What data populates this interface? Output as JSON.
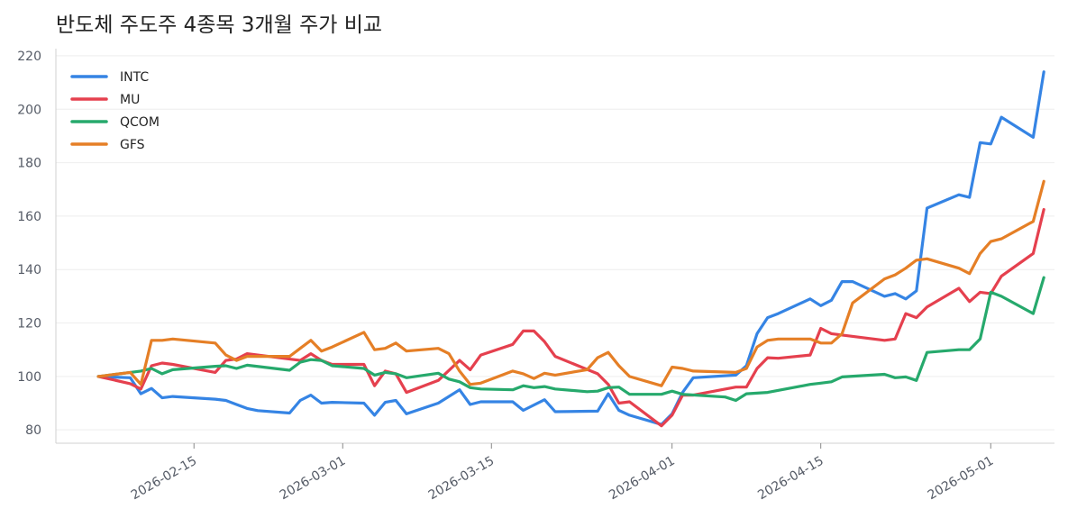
{
  "chart_data": {
    "type": "line",
    "title": "반도체 주도주 4종목 3개월 주가 비교",
    "xlabel": "",
    "ylabel": "",
    "ylim": [
      75,
      222
    ],
    "xlim": [
      "2026-02-02",
      "2026-05-07"
    ],
    "grid": true,
    "legend_position": "top-left",
    "yticks": [
      80,
      100,
      120,
      140,
      160,
      180,
      200,
      220
    ],
    "xticks": [
      "2026-02-15",
      "2026-03-01",
      "2026-03-15",
      "2026-04-01",
      "2026-04-15",
      "2026-05-01"
    ],
    "series": [
      {
        "name": "INTC",
        "color": "#3584e4",
        "points": [
          [
            "2026-02-06",
            100
          ],
          [
            "2026-02-09",
            99.5
          ],
          [
            "2026-02-10",
            93.5
          ],
          [
            "2026-02-11",
            95.5
          ],
          [
            "2026-02-12",
            92
          ],
          [
            "2026-02-13",
            92.5
          ],
          [
            "2026-02-17",
            91.5
          ],
          [
            "2026-02-18",
            91
          ],
          [
            "2026-02-19",
            89.5
          ],
          [
            "2026-02-20",
            88
          ],
          [
            "2026-02-21",
            87.2
          ],
          [
            "2026-02-24",
            86.3
          ],
          [
            "2026-02-25",
            91
          ],
          [
            "2026-02-26",
            93
          ],
          [
            "2026-02-27",
            90
          ],
          [
            "2026-02-28",
            90.3
          ],
          [
            "2026-03-03",
            90
          ],
          [
            "2026-03-04",
            85.5
          ],
          [
            "2026-03-05",
            90.3
          ],
          [
            "2026-03-06",
            91
          ],
          [
            "2026-03-07",
            86
          ],
          [
            "2026-03-10",
            90
          ],
          [
            "2026-03-12",
            95
          ],
          [
            "2026-03-13",
            89.5
          ],
          [
            "2026-03-14",
            90.5
          ],
          [
            "2026-03-17",
            90.5
          ],
          [
            "2026-03-18",
            87.3
          ],
          [
            "2026-03-20",
            91.3
          ],
          [
            "2026-03-21",
            86.8
          ],
          [
            "2026-03-25",
            87
          ],
          [
            "2026-03-26",
            93.5
          ],
          [
            "2026-03-27",
            87.3
          ],
          [
            "2026-03-28",
            85.5
          ],
          [
            "2026-03-31",
            82
          ],
          [
            "2026-04-01",
            86
          ],
          [
            "2026-04-02",
            94
          ],
          [
            "2026-04-03",
            99.5
          ],
          [
            "2026-04-07",
            100.5
          ],
          [
            "2026-04-08",
            104
          ],
          [
            "2026-04-09",
            116
          ],
          [
            "2026-04-10",
            122
          ],
          [
            "2026-04-11",
            123.5
          ],
          [
            "2026-04-14",
            129
          ],
          [
            "2026-04-15",
            126.5
          ],
          [
            "2026-04-16",
            128.5
          ],
          [
            "2026-04-17",
            135.5
          ],
          [
            "2026-04-18",
            135.5
          ],
          [
            "2026-04-21",
            130
          ],
          [
            "2026-04-22",
            131
          ],
          [
            "2026-04-23",
            129
          ],
          [
            "2026-04-24",
            132
          ],
          [
            "2026-04-25",
            163
          ],
          [
            "2026-04-28",
            168
          ],
          [
            "2026-04-29",
            167
          ],
          [
            "2026-04-30",
            187.5
          ],
          [
            "2026-05-01",
            187
          ],
          [
            "2026-05-02",
            197
          ],
          [
            "2026-05-05",
            189.5
          ],
          [
            "2026-05-06",
            214
          ]
        ]
      },
      {
        "name": "MU",
        "color": "#e5404e",
        "points": [
          [
            "2026-02-06",
            100
          ],
          [
            "2026-02-09",
            97.3
          ],
          [
            "2026-02-10",
            95.3
          ],
          [
            "2026-02-11",
            104
          ],
          [
            "2026-02-12",
            105
          ],
          [
            "2026-02-13",
            104.5
          ],
          [
            "2026-02-17",
            101.5
          ],
          [
            "2026-02-18",
            106
          ],
          [
            "2026-02-19",
            106.5
          ],
          [
            "2026-02-20",
            108.5
          ],
          [
            "2026-02-21",
            108
          ],
          [
            "2026-02-24",
            106.5
          ],
          [
            "2026-02-25",
            106
          ],
          [
            "2026-02-26",
            108.5
          ],
          [
            "2026-02-27",
            106
          ],
          [
            "2026-02-28",
            104.5
          ],
          [
            "2026-03-03",
            104.5
          ],
          [
            "2026-03-04",
            96.5
          ],
          [
            "2026-03-05",
            102
          ],
          [
            "2026-03-06",
            101
          ],
          [
            "2026-03-07",
            94
          ],
          [
            "2026-03-10",
            98.5
          ],
          [
            "2026-03-12",
            106
          ],
          [
            "2026-03-13",
            102.5
          ],
          [
            "2026-03-14",
            108
          ],
          [
            "2026-03-17",
            112
          ],
          [
            "2026-03-18",
            117
          ],
          [
            "2026-03-19",
            117
          ],
          [
            "2026-03-20",
            113
          ],
          [
            "2026-03-21",
            107.5
          ],
          [
            "2026-03-25",
            101
          ],
          [
            "2026-03-26",
            97
          ],
          [
            "2026-03-27",
            90
          ],
          [
            "2026-03-28",
            90.5
          ],
          [
            "2026-03-31",
            81.5
          ],
          [
            "2026-04-01",
            85.5
          ],
          [
            "2026-04-02",
            93
          ],
          [
            "2026-04-03",
            93
          ],
          [
            "2026-04-07",
            96
          ],
          [
            "2026-04-08",
            96
          ],
          [
            "2026-04-09",
            103
          ],
          [
            "2026-04-10",
            107
          ],
          [
            "2026-04-11",
            106.8
          ],
          [
            "2026-04-14",
            108
          ],
          [
            "2026-04-15",
            118
          ],
          [
            "2026-04-16",
            116
          ],
          [
            "2026-04-17",
            115.5
          ],
          [
            "2026-04-21",
            113.5
          ],
          [
            "2026-04-22",
            114
          ],
          [
            "2026-04-23",
            123.5
          ],
          [
            "2026-04-24",
            122
          ],
          [
            "2026-04-25",
            126
          ],
          [
            "2026-04-28",
            133
          ],
          [
            "2026-04-29",
            128
          ],
          [
            "2026-04-30",
            131.5
          ],
          [
            "2026-05-01",
            131
          ],
          [
            "2026-05-02",
            137.5
          ],
          [
            "2026-05-05",
            146
          ],
          [
            "2026-05-06",
            162.5
          ]
        ]
      },
      {
        "name": "QCOM",
        "color": "#26a96c",
        "points": [
          [
            "2026-02-06",
            100
          ],
          [
            "2026-02-09",
            101.5
          ],
          [
            "2026-02-10",
            102
          ],
          [
            "2026-02-11",
            103
          ],
          [
            "2026-02-12",
            101
          ],
          [
            "2026-02-13",
            102.5
          ],
          [
            "2026-02-17",
            103.8
          ],
          [
            "2026-02-18",
            104
          ],
          [
            "2026-02-19",
            103
          ],
          [
            "2026-02-20",
            104.2
          ],
          [
            "2026-02-24",
            102.3
          ],
          [
            "2026-02-25",
            105.3
          ],
          [
            "2026-02-26",
            106.3
          ],
          [
            "2026-02-27",
            106
          ],
          [
            "2026-02-28",
            104
          ],
          [
            "2026-03-03",
            103
          ],
          [
            "2026-03-04",
            100.5
          ],
          [
            "2026-03-05",
            101.5
          ],
          [
            "2026-03-06",
            101
          ],
          [
            "2026-03-07",
            99.5
          ],
          [
            "2026-03-10",
            101.2
          ],
          [
            "2026-03-11",
            99
          ],
          [
            "2026-03-12",
            98
          ],
          [
            "2026-03-13",
            95.8
          ],
          [
            "2026-03-14",
            95.3
          ],
          [
            "2026-03-17",
            95
          ],
          [
            "2026-03-18",
            96.5
          ],
          [
            "2026-03-19",
            95.8
          ],
          [
            "2026-03-20",
            96.2
          ],
          [
            "2026-03-21",
            95.3
          ],
          [
            "2026-03-24",
            94.3
          ],
          [
            "2026-03-25",
            94.5
          ],
          [
            "2026-03-26",
            95.8
          ],
          [
            "2026-03-27",
            96
          ],
          [
            "2026-03-28",
            93.3
          ],
          [
            "2026-03-31",
            93.3
          ],
          [
            "2026-04-01",
            94.5
          ],
          [
            "2026-04-02",
            93.3
          ],
          [
            "2026-04-06",
            92.3
          ],
          [
            "2026-04-07",
            91
          ],
          [
            "2026-04-08",
            93.5
          ],
          [
            "2026-04-10",
            94
          ],
          [
            "2026-04-14",
            97
          ],
          [
            "2026-04-15",
            97.5
          ],
          [
            "2026-04-16",
            98
          ],
          [
            "2026-04-17",
            99.8
          ],
          [
            "2026-04-21",
            100.8
          ],
          [
            "2026-04-22",
            99.5
          ],
          [
            "2026-04-23",
            99.8
          ],
          [
            "2026-04-24",
            98.5
          ],
          [
            "2026-04-25",
            109
          ],
          [
            "2026-04-28",
            110
          ],
          [
            "2026-04-29",
            110
          ],
          [
            "2026-04-30",
            114
          ],
          [
            "2026-05-01",
            131.5
          ],
          [
            "2026-05-02",
            130
          ],
          [
            "2026-05-05",
            123.5
          ],
          [
            "2026-05-06",
            137
          ]
        ]
      },
      {
        "name": "GFS",
        "color": "#e57f26",
        "points": [
          [
            "2026-02-06",
            100
          ],
          [
            "2026-02-09",
            101.5
          ],
          [
            "2026-02-10",
            97
          ],
          [
            "2026-02-11",
            113.5
          ],
          [
            "2026-02-12",
            113.5
          ],
          [
            "2026-02-13",
            114
          ],
          [
            "2026-02-17",
            112.5
          ],
          [
            "2026-02-18",
            108
          ],
          [
            "2026-02-19",
            106
          ],
          [
            "2026-02-20",
            107.5
          ],
          [
            "2026-02-24",
            107.5
          ],
          [
            "2026-02-25",
            110.5
          ],
          [
            "2026-02-26",
            113.5
          ],
          [
            "2026-02-27",
            109.5
          ],
          [
            "2026-02-28",
            111
          ],
          [
            "2026-03-03",
            116.5
          ],
          [
            "2026-03-04",
            110
          ],
          [
            "2026-03-05",
            110.5
          ],
          [
            "2026-03-06",
            112.5
          ],
          [
            "2026-03-07",
            109.5
          ],
          [
            "2026-03-10",
            110.5
          ],
          [
            "2026-03-11",
            108.5
          ],
          [
            "2026-03-12",
            102
          ],
          [
            "2026-03-13",
            97
          ],
          [
            "2026-03-14",
            97.5
          ],
          [
            "2026-03-17",
            102
          ],
          [
            "2026-03-18",
            101
          ],
          [
            "2026-03-19",
            99.2
          ],
          [
            "2026-03-20",
            101.2
          ],
          [
            "2026-03-21",
            100.5
          ],
          [
            "2026-03-24",
            102.5
          ],
          [
            "2026-03-25",
            107
          ],
          [
            "2026-03-26",
            109
          ],
          [
            "2026-03-27",
            104
          ],
          [
            "2026-03-28",
            100
          ],
          [
            "2026-03-31",
            96.5
          ],
          [
            "2026-04-01",
            103.5
          ],
          [
            "2026-04-02",
            103
          ],
          [
            "2026-04-03",
            102
          ],
          [
            "2026-04-07",
            101.5
          ],
          [
            "2026-04-08",
            103
          ],
          [
            "2026-04-09",
            111
          ],
          [
            "2026-04-10",
            113.5
          ],
          [
            "2026-04-11",
            114
          ],
          [
            "2026-04-14",
            114
          ],
          [
            "2026-04-15",
            112.5
          ],
          [
            "2026-04-16",
            112.5
          ],
          [
            "2026-04-17",
            116
          ],
          [
            "2026-04-18",
            127.5
          ],
          [
            "2026-04-21",
            136.5
          ],
          [
            "2026-04-22",
            138
          ],
          [
            "2026-04-23",
            140.5
          ],
          [
            "2026-04-24",
            143.5
          ],
          [
            "2026-04-25",
            144
          ],
          [
            "2026-04-28",
            140.5
          ],
          [
            "2026-04-29",
            138.5
          ],
          [
            "2026-04-30",
            146
          ],
          [
            "2026-05-01",
            150.5
          ],
          [
            "2026-05-02",
            151.5
          ],
          [
            "2026-05-05",
            158
          ],
          [
            "2026-05-06",
            173
          ]
        ]
      }
    ]
  }
}
